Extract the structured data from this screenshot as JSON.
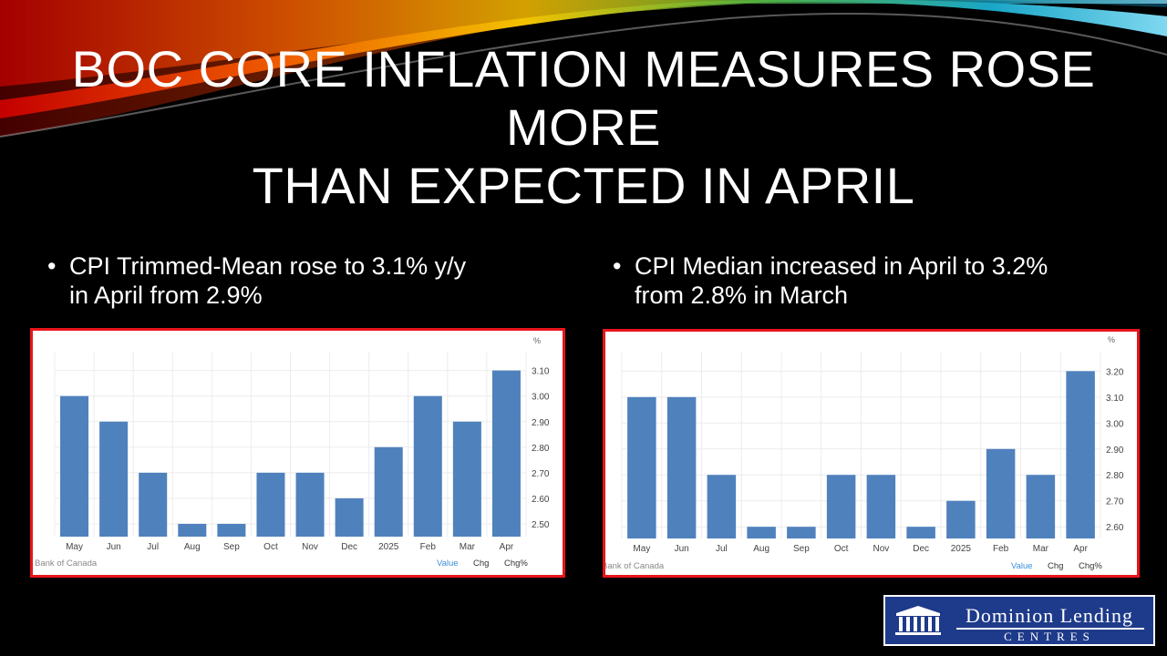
{
  "slide": {
    "title_line1": "BOC CORE INFLATION MEASURES ROSE MORE",
    "title_line2": "THAN EXPECTED IN APRIL",
    "bullet_left": "CPI Trimmed-Mean rose to 3.1% y/y in April from 2.9%",
    "bullet_right": "CPI Median increased in April to 3.2% from 2.8% in March",
    "bullet_symbol": "•"
  },
  "logo": {
    "name": "Dominion Lending",
    "subtitle": "CENTRES",
    "icon": "columns-building-icon",
    "background": "#1e3a8a"
  },
  "colors": {
    "bar": "#4f81bd",
    "panel_border": "#e8141b",
    "value_link": "#3d8fd6"
  },
  "chart_data": [
    {
      "type": "bar",
      "categories": [
        "May",
        "Jun",
        "Jul",
        "Aug",
        "Sep",
        "Oct",
        "Nov",
        "Dec",
        "2025",
        "Feb",
        "Mar",
        "Apr"
      ],
      "values": [
        3.0,
        2.9,
        2.7,
        2.5,
        2.5,
        2.7,
        2.7,
        2.6,
        2.8,
        3.0,
        2.9,
        3.1
      ],
      "unit_label": "%",
      "yticks": [
        "2.50",
        "2.60",
        "2.70",
        "2.80",
        "2.90",
        "3.00",
        "3.10"
      ],
      "ylim": [
        2.45,
        3.17
      ],
      "source": "Bank of Canada",
      "footer_links": [
        "Value",
        "Chg",
        "Chg%"
      ],
      "grid": true
    },
    {
      "type": "bar",
      "categories": [
        "May",
        "Jun",
        "Jul",
        "Aug",
        "Sep",
        "Oct",
        "Nov",
        "Dec",
        "2025",
        "Feb",
        "Mar",
        "Apr"
      ],
      "values": [
        3.1,
        3.1,
        2.8,
        2.6,
        2.6,
        2.8,
        2.8,
        2.6,
        2.7,
        2.9,
        2.8,
        3.2
      ],
      "unit_label": "%",
      "yticks": [
        "2.60",
        "2.70",
        "2.80",
        "2.90",
        "3.00",
        "3.10",
        "3.20"
      ],
      "ylim": [
        2.555,
        3.275
      ],
      "source": "Bank of Canada",
      "footer_links": [
        "Value",
        "Chg",
        "Chg%"
      ],
      "grid": true
    }
  ]
}
